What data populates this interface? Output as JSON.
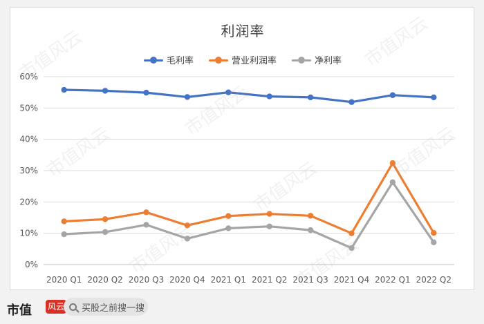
{
  "chart_data": {
    "type": "line",
    "title": "利润率",
    "categories": [
      "2020 Q1",
      "2020 Q2",
      "2020 Q3",
      "2020 Q4",
      "2021 Q1",
      "2021 Q2",
      "2021 Q3",
      "2021 Q4",
      "2022 Q1",
      "2022 Q2"
    ],
    "series": [
      {
        "name": "毛利率",
        "color": "#4472c4",
        "values": [
          55.8,
          55.5,
          54.9,
          53.5,
          55.0,
          53.7,
          53.4,
          51.9,
          54.1,
          53.4
        ]
      },
      {
        "name": "营业利润率",
        "color": "#ed7d31",
        "values": [
          13.8,
          14.5,
          16.7,
          12.5,
          15.5,
          16.2,
          15.6,
          10.0,
          32.4,
          10.1
        ]
      },
      {
        "name": "净利率",
        "color": "#a5a5a5",
        "values": [
          9.7,
          10.4,
          12.7,
          8.3,
          11.6,
          12.2,
          11.0,
          5.3,
          26.3,
          7.1
        ]
      }
    ],
    "yticks": [
      "0%",
      "10%",
      "20%",
      "30%",
      "40%",
      "50%",
      "60%"
    ],
    "ylim": [
      0,
      60
    ],
    "grid": true,
    "legend_position": "top"
  },
  "footer": {
    "brand": "市值",
    "seal": "风云",
    "search_text": "买股之前搜一搜"
  },
  "watermark_text": "市值风云"
}
